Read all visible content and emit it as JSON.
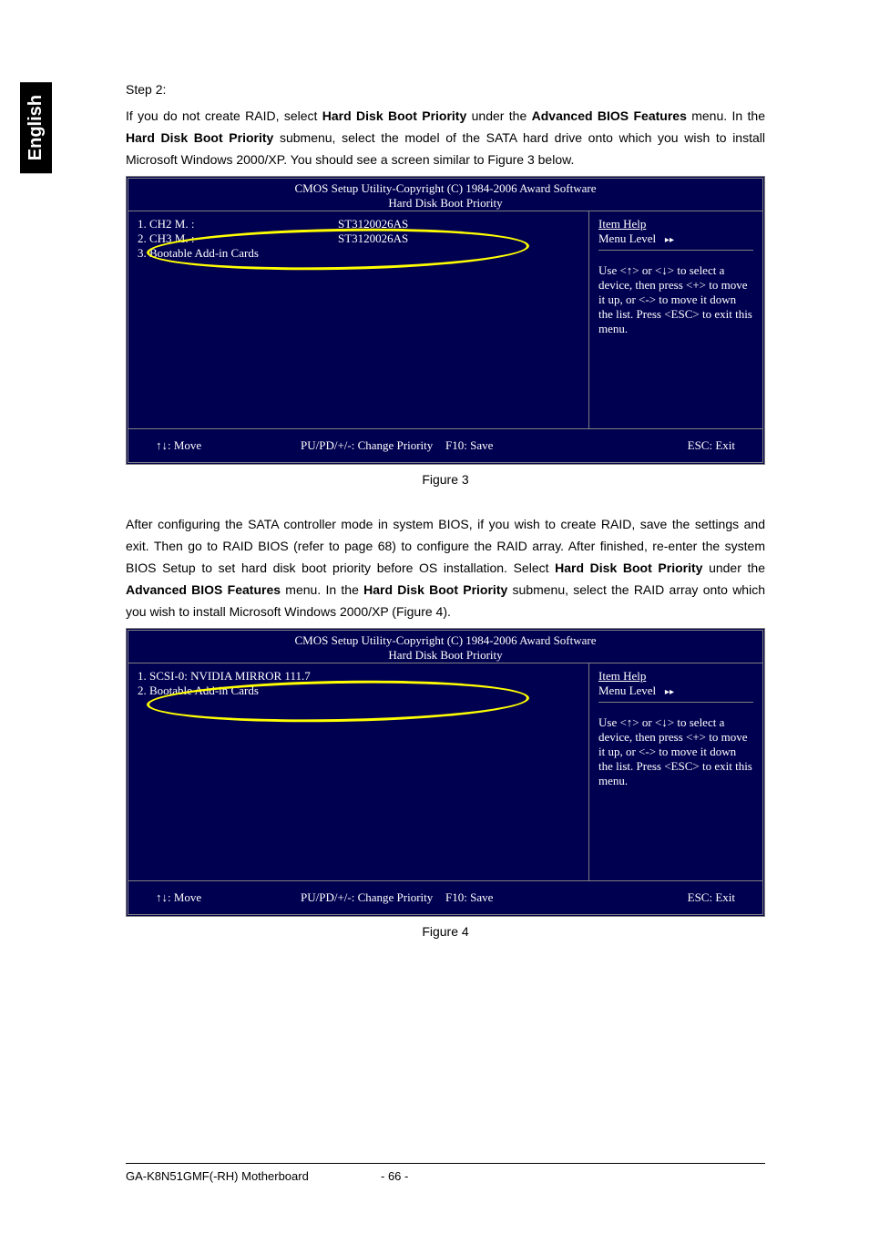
{
  "tab_label": "English",
  "step_label": "Step 2:",
  "para1_part1": "If you do not create RAID, select ",
  "para1_b1": "Hard Disk Boot Priority",
  "para1_part2": " under the ",
  "para1_b2": "Advanced BIOS Features",
  "para1_part3": " menu. In the ",
  "para1_b3": "Hard Disk Boot Priority",
  "para1_part4": " submenu, select the model of the SATA hard drive onto which you wish to install Microsoft Windows 2000/XP. You should see a screen similar to Figure 3 below.",
  "bios": {
    "copyright": "CMOS Setup Utility-Copyright (C) 1984-2006 Award Software",
    "subtitle": "Hard Disk Boot Priority",
    "help_title": "Item Help",
    "menu_level_label": "Menu Level",
    "menu_level_arrows": "▸▸",
    "help_text": "Use <↑>   or <↓> to select a device, then press <+> to move it up, or <-> to move it down the list. Press <ESC> to exit this menu.",
    "footer_move": "↑↓: Move",
    "footer_change": "PU/PD/+/-: Change Priority",
    "footer_save": "F10: Save",
    "footer_exit": "ESC: Exit"
  },
  "fig3": {
    "rows": [
      {
        "c1": "1. CH2 M.    :",
        "c2": "ST3120026AS"
      },
      {
        "c1": "2. CH3 M.    :",
        "c2": "ST3120026AS"
      },
      {
        "c1": "3. Bootable Add-in Cards",
        "c2": ""
      }
    ],
    "caption": "Figure 3"
  },
  "para2_part1": "After configuring the SATA controller mode in system BIOS, if you wish to create RAID, save the settings and exit. Then go to RAID BIOS (refer to page 68) to configure the RAID array. After finished, re-enter the system BIOS Setup to set hard disk boot priority before OS installation. Select ",
  "para2_b1": "Hard Disk Boot Priority",
  "para2_part2": " under the ",
  "para2_b2": "Advanced BIOS Features",
  "para2_part3": " menu. In the ",
  "para2_b3": "Hard Disk Boot Priority",
  "para2_part4": " submenu, select the RAID array onto which you wish to install Microsoft Windows 2000/XP (Figure 4).",
  "fig4": {
    "rows": [
      {
        "c1": "1. SCSI-0:      NVIDIA   MIRROR 111.7",
        "c2": ""
      },
      {
        "c1": "2. Bootable Add-in Cards",
        "c2": ""
      }
    ],
    "caption": "Figure 4"
  },
  "footer": {
    "left": "GA-K8N51GMF(-RH) Motherboard",
    "center": "- 66 -"
  }
}
